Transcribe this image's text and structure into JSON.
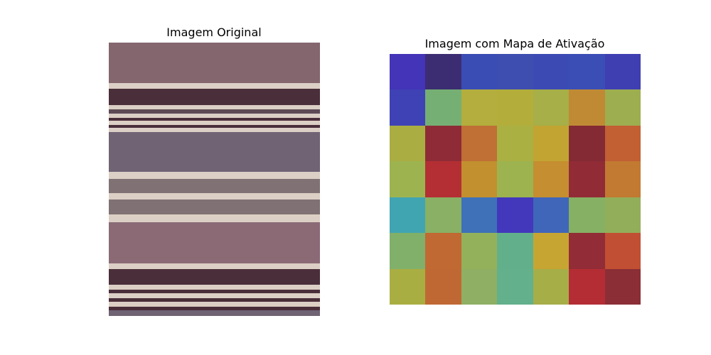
{
  "figure": {
    "left_title": "Imagem Original",
    "right_title": "Imagem com Mapa de Ativação"
  },
  "original_image": {
    "description_colors": {
      "base_top": "#84666f",
      "base_mid": "#6f6374",
      "base_lower": "#836f73",
      "base_bottom": "#8b6a76",
      "dark_band": "#4a2e3a",
      "light_band": "#dccfc5"
    }
  },
  "activation_map": {
    "rows": 7,
    "cols": 7,
    "cell_colors": [
      [
        "#4334b8",
        "#3c2d72",
        "#3a4db5",
        "#3e4eb0",
        "#3c4bb4",
        "#3b4eb6",
        "#403fb2"
      ],
      [
        "#3f42b4",
        "#76af74",
        "#b3ae3d",
        "#b3ae3b",
        "#a6af48",
        "#c08a35",
        "#9dae50"
      ],
      [
        "#aaad42",
        "#8f2b36",
        "#c06f35",
        "#aab042",
        "#c2a433",
        "#842a34",
        "#c25f33"
      ],
      [
        "#9db34f",
        "#b32f34",
        "#c2902f",
        "#9db34f",
        "#c58e30",
        "#912b36",
        "#c27a33"
      ],
      [
        "#41a4b1",
        "#89b064",
        "#3e71b8",
        "#4338bb",
        "#4066b9",
        "#86b064",
        "#93ae5a"
      ],
      [
        "#80b06a",
        "#c06933",
        "#93b15a",
        "#62b08b",
        "#c7a532",
        "#922c36",
        "#c14f34"
      ],
      [
        "#a9ae42",
        "#c06834",
        "#8eaf64",
        "#62b08c",
        "#a6ae48",
        "#b42d34",
        "#8b2e36"
      ]
    ]
  }
}
